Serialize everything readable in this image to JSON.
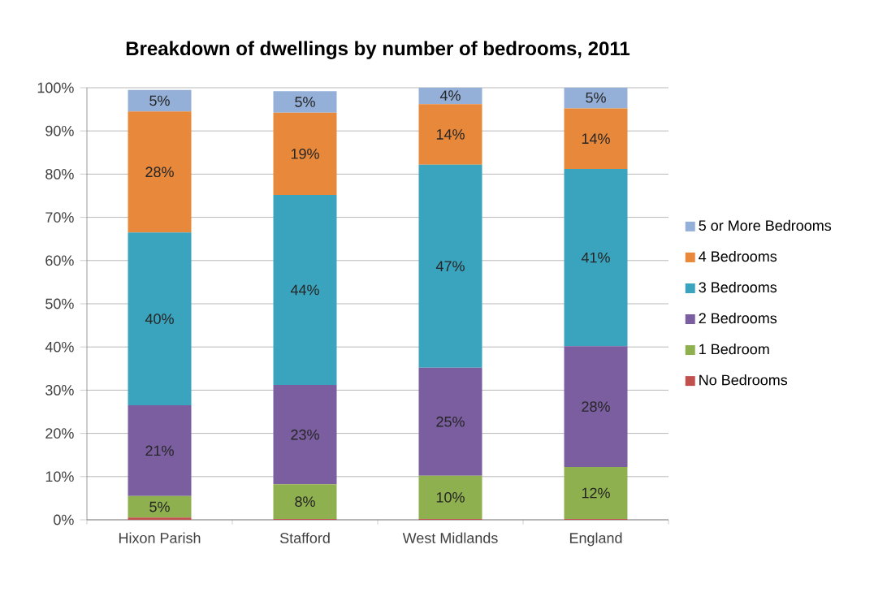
{
  "chart_data": {
    "type": "bar",
    "stacked": true,
    "title": "Breakdown of dwellings by number of bedrooms, 2011",
    "categories": [
      "Hixon Parish",
      "Stafford",
      "West Midlands",
      "England"
    ],
    "series": [
      {
        "name": "No Bedrooms",
        "color": "#c0504d",
        "values": [
          0.5,
          0.2,
          0.2,
          0.2
        ],
        "value_labels": [
          null,
          null,
          null,
          null
        ]
      },
      {
        "name": "1 Bedroom",
        "color": "#8fb04e",
        "values": [
          5,
          8,
          10,
          12
        ],
        "value_labels": [
          "5%",
          "8%",
          "10%",
          "12%"
        ]
      },
      {
        "name": "2 Bedrooms",
        "color": "#7b5ea0",
        "values": [
          21,
          23,
          25,
          28
        ],
        "value_labels": [
          "21%",
          "23%",
          "25%",
          "28%"
        ]
      },
      {
        "name": "3 Bedrooms",
        "color": "#3aa3bd",
        "values": [
          40,
          44,
          47,
          41
        ],
        "value_labels": [
          "40%",
          "44%",
          "47%",
          "41%"
        ]
      },
      {
        "name": "4 Bedrooms",
        "color": "#e8883a",
        "values": [
          28,
          19,
          14,
          14
        ],
        "value_labels": [
          "28%",
          "19%",
          "14%",
          "14%"
        ]
      },
      {
        "name": "5 or More Bedrooms",
        "color": "#95b0d8",
        "values": [
          5,
          5,
          4,
          5
        ],
        "value_labels": [
          "5%",
          "5%",
          "4%",
          "5%"
        ]
      }
    ],
    "ylim": [
      0,
      100
    ],
    "yticks": [
      {
        "value": 0,
        "label": "0%"
      },
      {
        "value": 10,
        "label": "10%"
      },
      {
        "value": 20,
        "label": "20%"
      },
      {
        "value": 30,
        "label": "30%"
      },
      {
        "value": 40,
        "label": "40%"
      },
      {
        "value": 50,
        "label": "50%"
      },
      {
        "value": 60,
        "label": "60%"
      },
      {
        "value": 70,
        "label": "70%"
      },
      {
        "value": 80,
        "label": "80%"
      },
      {
        "value": 90,
        "label": "90%"
      },
      {
        "value": 100,
        "label": "100%"
      }
    ],
    "grid": "y",
    "legend": "right"
  }
}
